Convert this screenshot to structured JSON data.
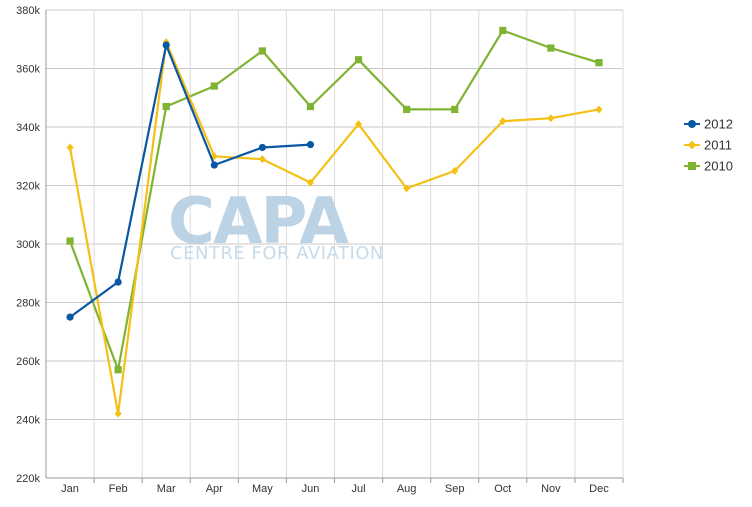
{
  "watermark": {
    "brand": "CAPA",
    "tagline": "CENTRE FOR AVIATION"
  },
  "chart_data": {
    "type": "line",
    "title": "",
    "xlabel": "",
    "ylabel": "",
    "categories": [
      "Jan",
      "Feb",
      "Mar",
      "Apr",
      "May",
      "Jun",
      "Jul",
      "Aug",
      "Sep",
      "Oct",
      "Nov",
      "Dec"
    ],
    "ylim": [
      220000,
      380000
    ],
    "yticks": [
      220000,
      240000,
      260000,
      280000,
      300000,
      320000,
      340000,
      360000,
      380000
    ],
    "ytick_labels": [
      "220k",
      "240k",
      "260k",
      "280k",
      "300k",
      "320k",
      "340k",
      "360k",
      "380k"
    ],
    "grid": true,
    "legend_position": "right",
    "series": [
      {
        "name": "2012",
        "color": "#0a57a3",
        "marker": "circle",
        "values": [
          275000,
          287000,
          368000,
          327000,
          333000,
          334000,
          null,
          null,
          null,
          null,
          null,
          null
        ]
      },
      {
        "name": "2011",
        "color": "#f5c016",
        "marker": "diamond",
        "values": [
          333000,
          242000,
          369000,
          330000,
          329000,
          321000,
          341000,
          319000,
          325000,
          342000,
          343000,
          346000
        ]
      },
      {
        "name": "2010",
        "color": "#7fb332",
        "marker": "square",
        "values": [
          301000,
          257000,
          347000,
          354000,
          366000,
          347000,
          363000,
          346000,
          346000,
          373000,
          367000,
          362000
        ]
      }
    ]
  }
}
